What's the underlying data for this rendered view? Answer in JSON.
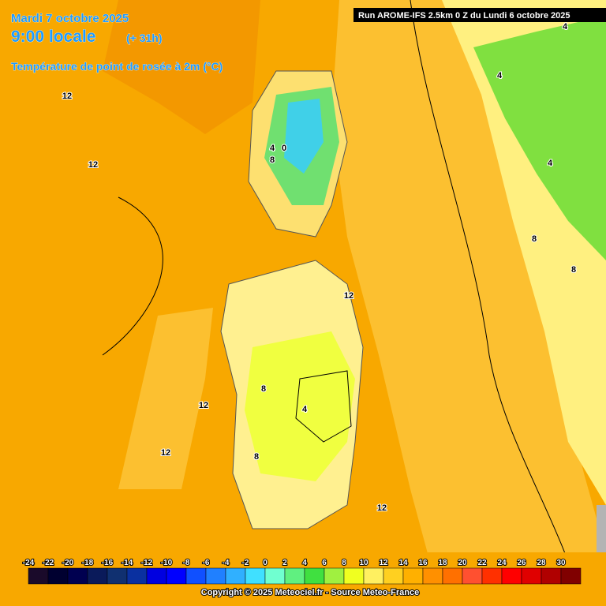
{
  "header": {
    "date": "Mardi 7 octobre 2025",
    "time": "9:00 locale",
    "lead": "(+ 31h)",
    "field": "Température de point de rosée à 2m (°C)"
  },
  "run": "Run AROME-IFS 2.5km 0 Z du Lundi 6 octobre 2025",
  "contour_labels": [
    "12",
    "12",
    "4",
    "0",
    "8",
    "4",
    "4",
    "4",
    "8",
    "8",
    "12",
    "8",
    "4",
    "12",
    "12",
    "8",
    "12"
  ],
  "scale": {
    "values": [
      -24,
      -22,
      -20,
      -18,
      -16,
      -14,
      -12,
      -10,
      -8,
      -6,
      -4,
      -2,
      0,
      2,
      4,
      6,
      8,
      10,
      12,
      14,
      16,
      18,
      20,
      22,
      24,
      26,
      28,
      30
    ],
    "colors": [
      "#1a0a2a",
      "#000030",
      "#000050",
      "#0a1a5a",
      "#103070",
      "#0a30a0",
      "#0000e0",
      "#0000ff",
      "#1050ff",
      "#2080ff",
      "#30b0ff",
      "#40e0ff",
      "#70ffd0",
      "#60f080",
      "#40e040",
      "#a0f040",
      "#f0ff20",
      "#fff060",
      "#ffd020",
      "#ffb000",
      "#ff9000",
      "#ff7000",
      "#ff5030",
      "#ff3000",
      "#ff0000",
      "#e00000",
      "#b00000",
      "#800000"
    ]
  },
  "copyright": "Copyright © 2025 Meteociel.fr - Source Meteo-France"
}
